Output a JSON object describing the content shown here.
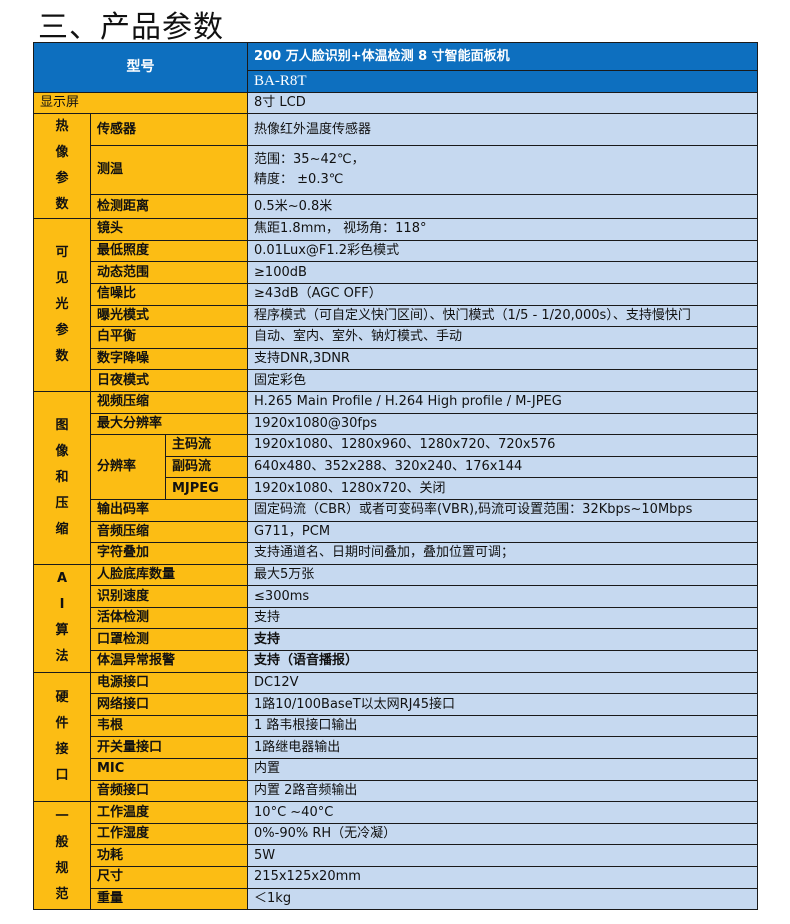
{
  "title": "三、产品参数",
  "colors": {
    "header_blue": "#0d6fbf",
    "label_yellow": "#fcbd14",
    "value_blue": "#c6d9f0"
  },
  "header": {
    "model_label": "型号",
    "product_name": "200 万人脸识别+体温检测 8 寸智能面板机",
    "model_code": "BA-R8T"
  },
  "display": {
    "label": "显示屏",
    "value": "8寸  LCD"
  },
  "groups": [
    {
      "name": "热像参数",
      "rows": [
        {
          "label": "传感器",
          "value": "热像红外温度传感器",
          "tall": 1
        },
        {
          "label": "测温",
          "value": "范围：35~42℃，",
          "value2": "精度：  ±0.3℃",
          "tall": 2
        },
        {
          "label": "检测距离",
          "value": "0.5米~0.8米"
        }
      ]
    },
    {
      "name": "可见光参数",
      "rows": [
        {
          "label": "镜头",
          "value": "焦距1.8mm，  视场角：118°"
        },
        {
          "label": "最低照度",
          "value": "0.01Lux@F1.2彩色模式"
        },
        {
          "label": "动态范围",
          "value": "≥100dB"
        },
        {
          "label": "信噪比",
          "value": "≥43dB（AGC OFF）"
        },
        {
          "label": "曝光模式",
          "value": "程序模式（可自定义快门区间）、快门模式（1/5 - 1/20,000s）、支持慢快门"
        },
        {
          "label": "白平衡",
          "value": "自动、室内、室外、钠灯模式、手动"
        },
        {
          "label": "数字降噪",
          "value": "支持DNR,3DNR"
        },
        {
          "label": "日夜模式",
          "value": "固定彩色"
        }
      ]
    },
    {
      "name": "图像和压缩",
      "rows": [
        {
          "label": "视频压缩",
          "value": "H.265 Main Profile / H.264 High profile / M-JPEG"
        },
        {
          "label": "最大分辨率",
          "value": "1920x1080@30fps"
        },
        {
          "label": "分辨率",
          "sub": [
            {
              "label": "主码流",
              "value": "1920x1080、1280x960、1280x720、720x576"
            },
            {
              "label": "副码流",
              "value": "640x480、352x288、320x240、176x144"
            },
            {
              "label": "MJPEG",
              "value": "1920x1080、1280x720、关闭"
            }
          ]
        },
        {
          "label": "输出码率",
          "value": "固定码流（CBR）或者可变码率(VBR),码流可设置范围：32Kbps~10Mbps"
        },
        {
          "label": "音频压缩",
          "value": "G711，PCM"
        },
        {
          "label": "字符叠加",
          "value": "支持通道名、日期时间叠加，叠加位置可调；"
        }
      ]
    },
    {
      "name": "AI算法",
      "rows": [
        {
          "label": "人脸底库数量",
          "value": "最大5万张"
        },
        {
          "label": "识别速度",
          "value": "≤300ms"
        },
        {
          "label": "活体检测",
          "value": "支持"
        },
        {
          "label": "口罩检测",
          "value": "支持",
          "bold": true
        },
        {
          "label": "体温异常报警",
          "value": "支持（语音播报）",
          "bold": true
        }
      ]
    },
    {
      "name": "硬件接口",
      "rows": [
        {
          "label": "电源接口",
          "value": "DC12V"
        },
        {
          "label": "网络接口",
          "value": "1路10/100BaseT以太网RJ45接口"
        },
        {
          "label": "韦根",
          "value": "1 路韦根接口输出"
        },
        {
          "label": "开关量接口",
          "value": "1路继电器输出"
        },
        {
          "label": "MIC",
          "value": "内置"
        },
        {
          "label": "音频接口",
          "value": "内置  2路音频输出"
        }
      ]
    },
    {
      "name": "一般规范",
      "rows": [
        {
          "label": "工作温度",
          "value": "10°C ~40°C"
        },
        {
          "label": "工作湿度",
          "value": "0%-90% RH（无冷凝）"
        },
        {
          "label": "功耗",
          "value": "5W"
        },
        {
          "label": "尺寸",
          "value": "215x125x20mm"
        },
        {
          "label": "重量",
          "value": "＜1kg"
        }
      ]
    }
  ]
}
